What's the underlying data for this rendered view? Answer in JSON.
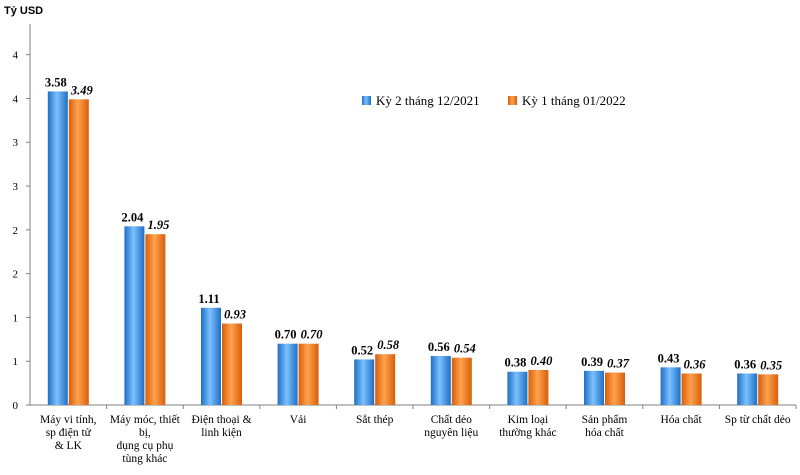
{
  "chart_data": {
    "type": "bar",
    "unit_label": "Tỷ USD",
    "y_tick_labels": [
      "0",
      "1",
      "1",
      "2",
      "2",
      "3",
      "3",
      "4",
      "4"
    ],
    "ylim": [
      0,
      4.35
    ],
    "categories": [
      [
        "Máy vi tính,",
        "sp điện tử",
        "& LK"
      ],
      [
        "Máy móc, thiết",
        "bị,",
        "dụng cụ phụ",
        "tùng khác"
      ],
      [
        "Điện thoại &",
        "linh kiện"
      ],
      [
        "Vải"
      ],
      [
        "Sắt thép"
      ],
      [
        "Chất dẻo",
        "nguyên liệu"
      ],
      [
        "Kim loại",
        "thường khác"
      ],
      [
        "Sản phẩm",
        "hóa chất"
      ],
      [
        "Hóa chất"
      ],
      [
        "Sp từ chất dẻo"
      ]
    ],
    "series": [
      {
        "name": "Kỳ 2 tháng 12/2021",
        "color": "#3a8fe0",
        "values": [
          3.58,
          2.04,
          1.11,
          0.7,
          0.52,
          0.56,
          0.38,
          0.39,
          0.43,
          0.36
        ],
        "labels": [
          "3.58",
          "2.04",
          "1.11",
          "0.70",
          "0.52",
          "0.56",
          "0.38",
          "0.39",
          "0.43",
          "0.36"
        ]
      },
      {
        "name": "Kỳ 1 tháng 01/2022",
        "color": "#f07a1c",
        "values": [
          3.49,
          1.95,
          0.93,
          0.7,
          0.58,
          0.54,
          0.4,
          0.37,
          0.36,
          0.35
        ],
        "labels": [
          "3.49",
          "1.95",
          "0.93",
          "0.70",
          "0.58",
          "0.54",
          "0.40",
          "0.37",
          "0.36",
          "0.35"
        ]
      }
    ],
    "legend_position": "top-right",
    "grid": false
  }
}
